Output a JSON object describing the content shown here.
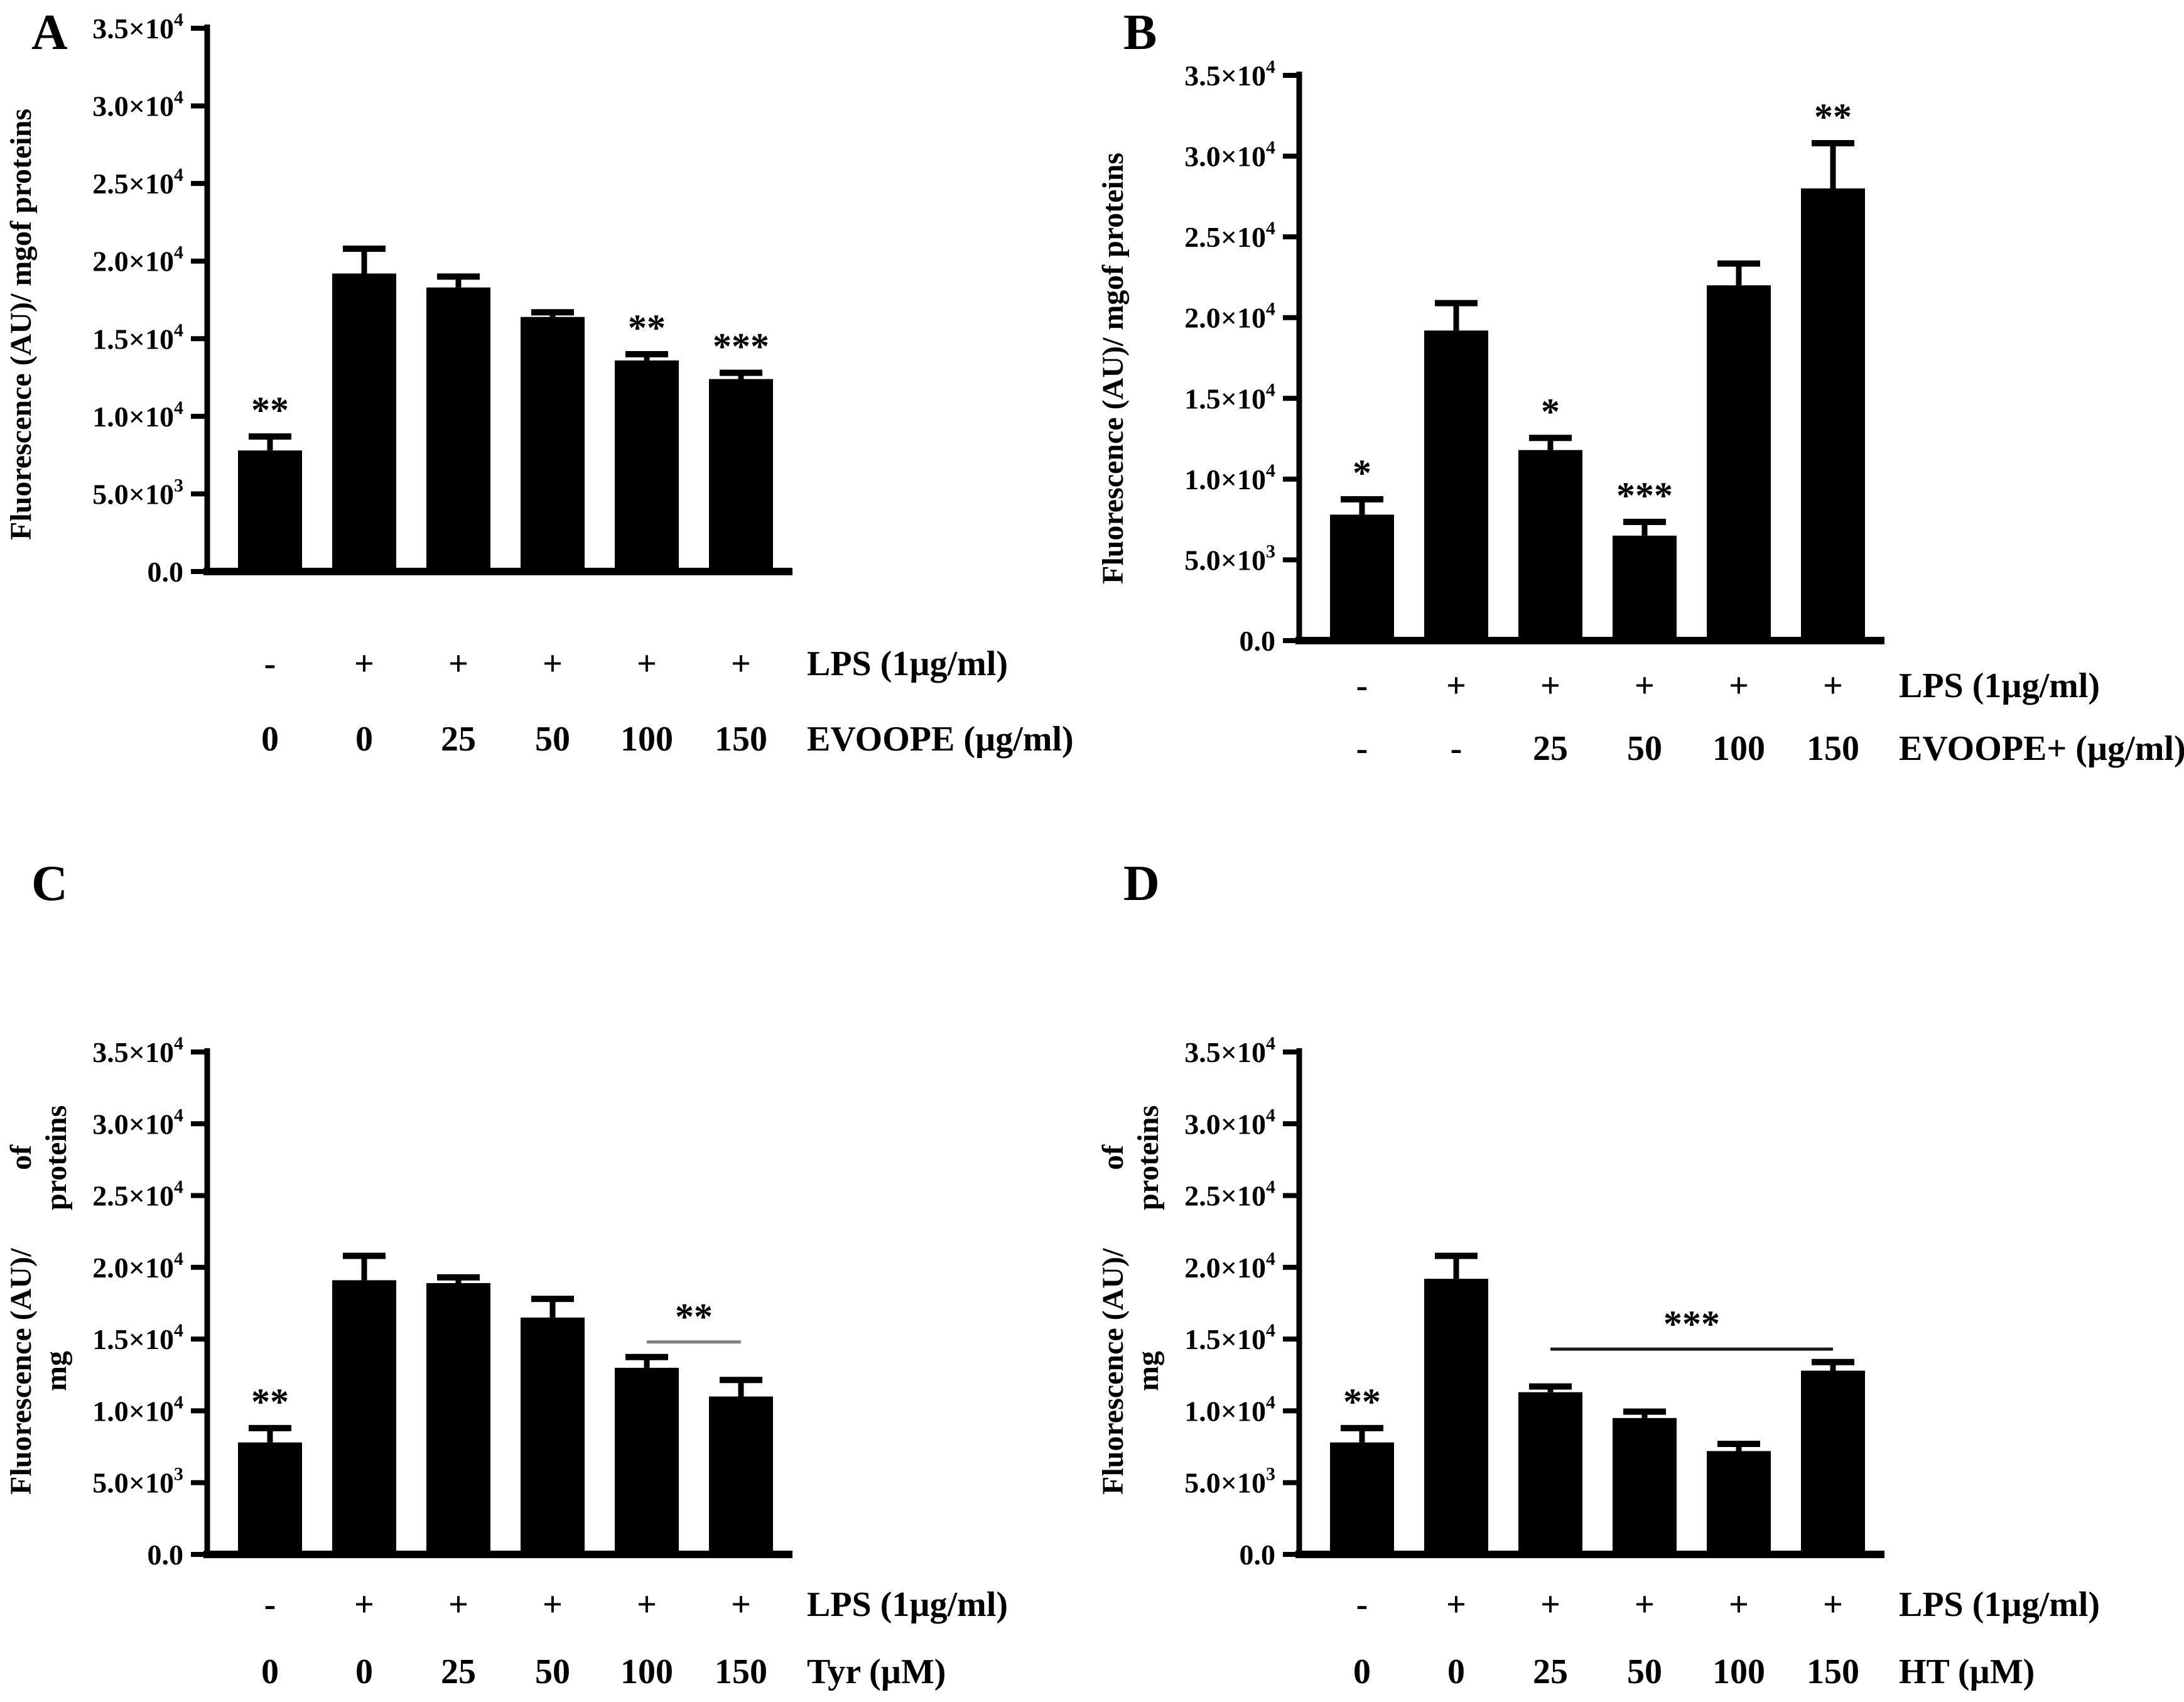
{
  "figure": {
    "background": "#ffffff",
    "bar_color": "#000000",
    "axis_color": "#000000"
  },
  "chart_data": [
    {
      "panel": "A",
      "type": "bar",
      "ylabel": "Fluorescence (AU)/ mg of proteins",
      "ylabel_lines": [
        "Fluorescence (AU)/ mg",
        "of proteins"
      ],
      "ylim": [
        0,
        35000
      ],
      "yticks": [
        0,
        5000,
        10000,
        15000,
        20000,
        25000,
        30000,
        35000
      ],
      "ytick_labels": [
        [
          "0.0",
          ""
        ],
        [
          "5.0×10",
          "3"
        ],
        [
          "1.0×10",
          "4"
        ],
        [
          "1.5×10",
          "4"
        ],
        [
          "2.0×10",
          "4"
        ],
        [
          "2.5×10",
          "4"
        ],
        [
          "3.0×10",
          "4"
        ],
        [
          "3.5×10",
          "4"
        ]
      ],
      "values": [
        7800,
        19200,
        18300,
        16400,
        13600,
        12400
      ],
      "errors": [
        900,
        1600,
        700,
        300,
        400,
        400
      ],
      "significance": [
        "**",
        "",
        "",
        "",
        "**",
        "***"
      ],
      "bracket": null,
      "x_rows": [
        {
          "label": "LPS (1µg/ml)",
          "values": [
            "-",
            "+",
            "+",
            "+",
            "+",
            "+"
          ]
        },
        {
          "label": "EVOOPE (µg/ml)",
          "values": [
            "0",
            "0",
            "25",
            "50",
            "100",
            "150"
          ]
        }
      ],
      "bar_color": "#000000"
    },
    {
      "panel": "B",
      "type": "bar",
      "ylabel": "Fluorescence (AU)/ mg of proteins",
      "ylabel_lines": [
        "Fluorescence (AU)/ mg",
        "of proteins"
      ],
      "ylim": [
        0,
        35000
      ],
      "yticks": [
        0,
        5000,
        10000,
        15000,
        20000,
        25000,
        30000,
        35000
      ],
      "ytick_labels": [
        [
          "0.0",
          ""
        ],
        [
          "5.0×10",
          "3"
        ],
        [
          "1.0×10",
          "4"
        ],
        [
          "1.5×10",
          "4"
        ],
        [
          "2.0×10",
          "4"
        ],
        [
          "2.5×10",
          "4"
        ],
        [
          "3.0×10",
          "4"
        ],
        [
          "3.5×10",
          "4"
        ]
      ],
      "values": [
        7800,
        19200,
        11800,
        6500,
        22000,
        28000
      ],
      "errors": [
        950,
        1700,
        750,
        850,
        1350,
        2800
      ],
      "significance": [
        "*",
        "",
        "*",
        "***",
        "",
        "**"
      ],
      "bracket": null,
      "x_rows": [
        {
          "label": "LPS (1µg/ml)",
          "values": [
            "-",
            "+",
            "+",
            "+",
            "+",
            "+"
          ]
        },
        {
          "label": "EVOOPE+ (µg/ml)",
          "values": [
            "-",
            "-",
            "25",
            "50",
            "100",
            "150"
          ]
        }
      ],
      "bar_color": "#000000"
    },
    {
      "panel": "C",
      "type": "bar",
      "ylabel": "Fluorescence (AU)/ mg of proteins",
      "ylabel_lines": [
        "Fluorescence (AU)/ mg",
        "of proteins"
      ],
      "ylim": [
        0,
        35000
      ],
      "yticks": [
        0,
        5000,
        10000,
        15000,
        20000,
        25000,
        30000,
        35000
      ],
      "ytick_labels": [
        [
          "0.0",
          ""
        ],
        [
          "5.0×10",
          "3"
        ],
        [
          "1.0×10",
          "4"
        ],
        [
          "1.5×10",
          "4"
        ],
        [
          "2.0×10",
          "4"
        ],
        [
          "2.5×10",
          "4"
        ],
        [
          "3.0×10",
          "4"
        ],
        [
          "3.5×10",
          "4"
        ]
      ],
      "values": [
        7800,
        19100,
        18900,
        16500,
        13000,
        11000
      ],
      "errors": [
        1000,
        1700,
        400,
        1300,
        750,
        1150
      ],
      "significance": [
        "**",
        "",
        "",
        "",
        "",
        ""
      ],
      "bracket": {
        "from_index": 4,
        "to_index": 5,
        "y_value": 14800,
        "label": "**",
        "color": "#808080"
      },
      "x_rows": [
        {
          "label": "LPS (1µg/ml)",
          "values": [
            "-",
            "+",
            "+",
            "+",
            "+",
            "+"
          ]
        },
        {
          "label": "Tyr (µM)",
          "values": [
            "0",
            "0",
            "25",
            "50",
            "100",
            "150"
          ]
        }
      ],
      "bar_color": "#000000"
    },
    {
      "panel": "D",
      "type": "bar",
      "ylabel": "Fluorescence (AU)/ mg of proteins",
      "ylabel_lines": [
        "Fluorescence (AU)/ mg",
        "of proteins"
      ],
      "ylim": [
        0,
        35000
      ],
      "yticks": [
        0,
        5000,
        10000,
        15000,
        20000,
        25000,
        30000,
        35000
      ],
      "ytick_labels": [
        [
          "0.0",
          ""
        ],
        [
          "5.0×10",
          "3"
        ],
        [
          "1.0×10",
          "4"
        ],
        [
          "1.5×10",
          "4"
        ],
        [
          "2.0×10",
          "4"
        ],
        [
          "2.5×10",
          "4"
        ],
        [
          "3.0×10",
          "4"
        ],
        [
          "3.5×10",
          "4"
        ]
      ],
      "values": [
        7800,
        19200,
        11300,
        9500,
        7200,
        12800
      ],
      "errors": [
        1000,
        1600,
        400,
        450,
        500,
        600
      ],
      "significance": [
        "**",
        "",
        "",
        "",
        "",
        ""
      ],
      "bracket": {
        "from_index": 2,
        "to_index": 5,
        "y_value": 14300,
        "label": "***",
        "color": "#1a1a1a"
      },
      "x_rows": [
        {
          "label": "LPS (1µg/ml)",
          "values": [
            "-",
            "+",
            "+",
            "+",
            "+",
            "+"
          ]
        },
        {
          "label": "HT (µM)",
          "values": [
            "0",
            "0",
            "25",
            "50",
            "100",
            "150"
          ]
        }
      ],
      "bar_color": "#000000"
    }
  ]
}
